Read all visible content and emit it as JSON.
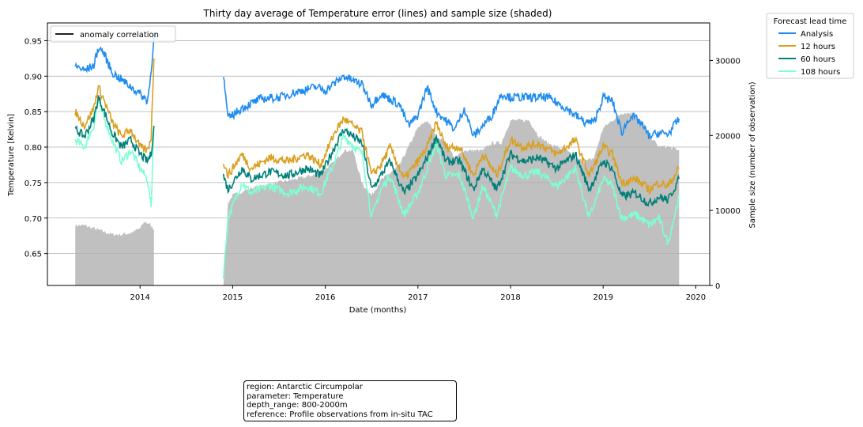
{
  "chart_data": {
    "type": "line",
    "title": "Thirty day average of Temperature error (lines) and sample size (shaded)",
    "xlabel": "Date (months)",
    "ylabel": "Temperature [Kelvin]",
    "y2label": "Sample size (number of observation)",
    "xlim": [
      2013.0,
      2020.15
    ],
    "ylim": [
      0.605,
      0.975
    ],
    "y2lim": [
      0,
      35000
    ],
    "x_ticks": [
      "2014",
      "2015",
      "2016",
      "2017",
      "2018",
      "2019",
      "2020"
    ],
    "x_tick_values": [
      2014,
      2015,
      2016,
      2017,
      2018,
      2019,
      2020
    ],
    "y_ticks": [
      "0.65",
      "0.70",
      "0.75",
      "0.80",
      "0.85",
      "0.90",
      "0.95"
    ],
    "y_tick_values": [
      0.65,
      0.7,
      0.75,
      0.8,
      0.85,
      0.9,
      0.95
    ],
    "y2_ticks": [
      "0",
      "10000",
      "20000",
      "30000"
    ],
    "y2_tick_values": [
      0,
      10000,
      20000,
      30000
    ],
    "grid": true,
    "anomaly_legend": {
      "label": "anomaly correlation",
      "color": "#000000",
      "placement": "upper-left"
    },
    "legend": {
      "title": "Forecast lead time",
      "placement": "outside-right"
    },
    "series": [
      {
        "name": "Analysis",
        "color": "#1e8cf0",
        "segments": [
          {
            "x": [
              2013.3,
              2013.4,
              2013.5,
              2013.55,
              2013.6,
              2013.7,
              2013.8,
              2013.9,
              2014.0,
              2014.08,
              2014.12,
              2014.15
            ],
            "y": [
              0.915,
              0.908,
              0.915,
              0.94,
              0.935,
              0.905,
              0.895,
              0.885,
              0.875,
              0.865,
              0.905,
              0.96
            ]
          },
          {
            "x": [
              2014.9,
              2014.95,
              2015.1,
              2015.3,
              2015.5,
              2015.7,
              2015.9,
              2016.0,
              2016.2,
              2016.4,
              2016.5,
              2016.6,
              2016.8,
              2016.9,
              2017.0,
              2017.1,
              2017.2,
              2017.4,
              2017.5,
              2017.6,
              2017.7,
              2017.8,
              2017.9,
              2018.0,
              2018.2,
              2018.4,
              2018.6,
              2018.7,
              2018.8,
              2018.9,
              2019.0,
              2019.1,
              2019.2,
              2019.3,
              2019.4,
              2019.5,
              2019.6,
              2019.7,
              2019.82
            ],
            "y": [
              0.9,
              0.84,
              0.855,
              0.868,
              0.87,
              0.878,
              0.885,
              0.88,
              0.9,
              0.888,
              0.86,
              0.875,
              0.86,
              0.83,
              0.845,
              0.885,
              0.85,
              0.825,
              0.855,
              0.815,
              0.83,
              0.845,
              0.875,
              0.87,
              0.87,
              0.87,
              0.855,
              0.845,
              0.835,
              0.835,
              0.87,
              0.865,
              0.82,
              0.845,
              0.835,
              0.815,
              0.82,
              0.818,
              0.84
            ]
          }
        ]
      },
      {
        "name": "12 hours",
        "color": "#daa020",
        "segments": [
          {
            "x": [
              2013.3,
              2013.4,
              2013.5,
              2013.55,
              2013.6,
              2013.7,
              2013.8,
              2013.9,
              2014.0,
              2014.08,
              2014.12,
              2014.15
            ],
            "y": [
              0.85,
              0.83,
              0.855,
              0.885,
              0.87,
              0.835,
              0.815,
              0.825,
              0.8,
              0.795,
              0.815,
              0.925
            ]
          },
          {
            "x": [
              2014.9,
              2014.95,
              2015.1,
              2015.2,
              2015.4,
              2015.6,
              2015.8,
              2015.95,
              2016.1,
              2016.2,
              2016.4,
              2016.5,
              2016.6,
              2016.7,
              2016.85,
              2017.0,
              2017.1,
              2017.2,
              2017.3,
              2017.45,
              2017.6,
              2017.7,
              2017.85,
              2018.0,
              2018.15,
              2018.3,
              2018.5,
              2018.7,
              2018.85,
              2019.0,
              2019.1,
              2019.2,
              2019.35,
              2019.5,
              2019.6,
              2019.7,
              2019.82
            ],
            "y": [
              0.78,
              0.76,
              0.79,
              0.77,
              0.785,
              0.78,
              0.79,
              0.775,
              0.82,
              0.84,
              0.82,
              0.76,
              0.775,
              0.8,
              0.755,
              0.78,
              0.8,
              0.835,
              0.8,
              0.8,
              0.76,
              0.79,
              0.76,
              0.81,
              0.8,
              0.805,
              0.79,
              0.81,
              0.76,
              0.8,
              0.79,
              0.75,
              0.755,
              0.74,
              0.75,
              0.745,
              0.77
            ]
          }
        ]
      },
      {
        "name": "60 hours",
        "color": "#008078",
        "segments": [
          {
            "x": [
              2013.3,
              2013.4,
              2013.5,
              2013.55,
              2013.6,
              2013.7,
              2013.8,
              2013.9,
              2014.0,
              2014.08,
              2014.12,
              2014.15
            ],
            "y": [
              0.825,
              0.815,
              0.84,
              0.87,
              0.855,
              0.82,
              0.8,
              0.81,
              0.79,
              0.78,
              0.79,
              0.83
            ]
          },
          {
            "x": [
              2014.9,
              2014.95,
              2015.1,
              2015.2,
              2015.4,
              2015.6,
              2015.8,
              2015.95,
              2016.1,
              2016.2,
              2016.4,
              2016.5,
              2016.6,
              2016.7,
              2016.85,
              2017.0,
              2017.1,
              2017.2,
              2017.3,
              2017.45,
              2017.6,
              2017.7,
              2017.85,
              2018.0,
              2018.15,
              2018.3,
              2018.5,
              2018.7,
              2018.85,
              2019.0,
              2019.1,
              2019.2,
              2019.35,
              2019.5,
              2019.6,
              2019.7,
              2019.82
            ],
            "y": [
              0.76,
              0.74,
              0.77,
              0.755,
              0.765,
              0.76,
              0.77,
              0.76,
              0.8,
              0.825,
              0.805,
              0.74,
              0.76,
              0.78,
              0.735,
              0.76,
              0.785,
              0.815,
              0.78,
              0.78,
              0.74,
              0.77,
              0.74,
              0.79,
              0.78,
              0.785,
              0.77,
              0.79,
              0.74,
              0.78,
              0.77,
              0.73,
              0.735,
              0.72,
              0.73,
              0.725,
              0.755
            ]
          }
        ]
      },
      {
        "name": "108 hours",
        "color": "#7dffd4",
        "segments": [
          {
            "x": [
              2013.3,
              2013.4,
              2013.5,
              2013.55,
              2013.6,
              2013.7,
              2013.8,
              2013.9,
              2014.0,
              2014.08,
              2014.12,
              2014.15
            ],
            "y": [
              0.81,
              0.8,
              0.83,
              0.865,
              0.845,
              0.81,
              0.78,
              0.795,
              0.77,
              0.755,
              0.715,
              0.83
            ]
          },
          {
            "x": [
              2014.9,
              2014.95,
              2015.1,
              2015.2,
              2015.4,
              2015.6,
              2015.8,
              2015.95,
              2016.1,
              2016.2,
              2016.4,
              2016.5,
              2016.6,
              2016.7,
              2016.85,
              2017.0,
              2017.1,
              2017.2,
              2017.3,
              2017.45,
              2017.6,
              2017.7,
              2017.85,
              2018.0,
              2018.15,
              2018.3,
              2018.5,
              2018.7,
              2018.85,
              2019.0,
              2019.1,
              2019.2,
              2019.35,
              2019.5,
              2019.6,
              2019.7,
              2019.82
            ],
            "y": [
              0.62,
              0.7,
              0.75,
              0.735,
              0.745,
              0.735,
              0.745,
              0.735,
              0.78,
              0.815,
              0.79,
              0.7,
              0.74,
              0.76,
              0.705,
              0.735,
              0.77,
              0.805,
              0.76,
              0.76,
              0.7,
              0.745,
              0.705,
              0.77,
              0.76,
              0.765,
              0.745,
              0.77,
              0.7,
              0.755,
              0.745,
              0.7,
              0.705,
              0.69,
              0.7,
              0.665,
              0.73
            ]
          }
        ]
      }
    ],
    "sample_size": {
      "color": "#c0c0c0",
      "segments": [
        {
          "x": [
            2013.3,
            2013.4,
            2013.5,
            2013.6,
            2013.7,
            2013.8,
            2013.9,
            2014.0,
            2014.05,
            2014.1,
            2014.15
          ],
          "y": [
            8000,
            8000,
            7600,
            7200,
            6800,
            6800,
            7000,
            7600,
            8500,
            8200,
            7500
          ]
        },
        {
          "x": [
            2014.9,
            2014.95,
            2015.0,
            2015.2,
            2015.4,
            2015.6,
            2015.8,
            2015.95,
            2016.1,
            2016.2,
            2016.3,
            2016.4,
            2016.5,
            2016.6,
            2016.8,
            2017.0,
            2017.1,
            2017.2,
            2017.3,
            2017.4,
            2017.5,
            2017.6,
            2017.7,
            2017.8,
            2017.9,
            2018.0,
            2018.1,
            2018.2,
            2018.3,
            2018.4,
            2018.6,
            2018.7,
            2018.8,
            2018.9,
            2019.0,
            2019.1,
            2019.2,
            2019.3,
            2019.4,
            2019.5,
            2019.6,
            2019.7,
            2019.82
          ],
          "y": [
            0,
            11000,
            12000,
            13000,
            13500,
            14000,
            14500,
            15000,
            16500,
            18000,
            18000,
            13500,
            12000,
            14000,
            16000,
            21000,
            22000,
            20000,
            19000,
            17000,
            18000,
            18000,
            18000,
            19000,
            19000,
            22000,
            22000,
            22000,
            20000,
            19000,
            18000,
            17000,
            16500,
            17000,
            21000,
            22000,
            23000,
            23000,
            22000,
            20000,
            18500,
            18500,
            18000
          ]
        }
      ]
    }
  },
  "info_box": {
    "lines": [
      "region: Antarctic Circumpolar",
      "parameter: Temperature",
      "depth_range: 800-2000m",
      "reference: Profile observations from in-situ TAC"
    ]
  }
}
